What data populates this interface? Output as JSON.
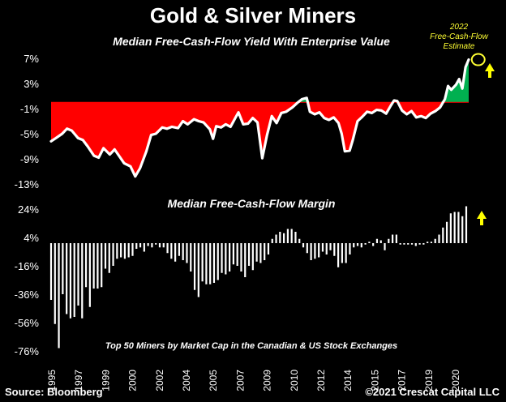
{
  "title": "Gold & Silver Miners",
  "source": "Source: Bloomberg",
  "copyright": "©2021 Crescat Capital LLC",
  "chart_data": [
    {
      "type": "area",
      "title": "Median Free-Cash-Flow Yield With Enterprise Value",
      "unit": "%",
      "yticks": [
        "7%",
        "3%",
        "-1%",
        "-5%",
        "-9%",
        "-13%"
      ],
      "ylim": [
        -13,
        7
      ],
      "baseline": 0,
      "annotation": {
        "lines": [
          "2022",
          "Free-Cash-Flow",
          "Estimate"
        ],
        "x": 2021.9,
        "y": 6.8
      },
      "points": [
        [
          1995.0,
          -6.2
        ],
        [
          1995.3,
          -5.7
        ],
        [
          1995.7,
          -5.0
        ],
        [
          1996.0,
          -4.2
        ],
        [
          1996.3,
          -4.5
        ],
        [
          1996.7,
          -5.7
        ],
        [
          1997.0,
          -6.0
        ],
        [
          1997.3,
          -7.0
        ],
        [
          1997.7,
          -8.5
        ],
        [
          1998.0,
          -8.8
        ],
        [
          1998.3,
          -7.3
        ],
        [
          1998.7,
          -8.3
        ],
        [
          1999.0,
          -7.5
        ],
        [
          1999.3,
          -8.6
        ],
        [
          1999.6,
          -9.7
        ],
        [
          2000.0,
          -10.2
        ],
        [
          2000.3,
          -11.8
        ],
        [
          2000.6,
          -10.5
        ],
        [
          2001.0,
          -7.8
        ],
        [
          2001.3,
          -5.2
        ],
        [
          2001.6,
          -5.0
        ],
        [
          2002.0,
          -4.0
        ],
        [
          2002.3,
          -4.2
        ],
        [
          2002.6,
          -3.9
        ],
        [
          2003.0,
          -4.1
        ],
        [
          2003.3,
          -3.0
        ],
        [
          2003.6,
          -3.5
        ],
        [
          2004.0,
          -2.7
        ],
        [
          2004.3,
          -3.0
        ],
        [
          2004.6,
          -3.2
        ],
        [
          2005.0,
          -4.3
        ],
        [
          2005.2,
          -5.8
        ],
        [
          2005.4,
          -3.8
        ],
        [
          2005.7,
          -4.0
        ],
        [
          2006.0,
          -3.5
        ],
        [
          2006.3,
          -3.9
        ],
        [
          2006.6,
          -2.5
        ],
        [
          2006.8,
          -1.6
        ],
        [
          2007.1,
          -3.5
        ],
        [
          2007.4,
          -3.4
        ],
        [
          2007.7,
          -2.5
        ],
        [
          2008.0,
          -3.2
        ],
        [
          2008.3,
          -8.9
        ],
        [
          2008.6,
          -5.2
        ],
        [
          2008.9,
          -2.2
        ],
        [
          2009.2,
          -3.3
        ],
        [
          2009.5,
          -1.7
        ],
        [
          2009.8,
          -1.5
        ],
        [
          2010.2,
          -0.8
        ],
        [
          2010.5,
          -0.1
        ],
        [
          2010.8,
          0.5
        ],
        [
          2011.1,
          0.7
        ],
        [
          2011.3,
          -1.5
        ],
        [
          2011.6,
          -1.9
        ],
        [
          2011.9,
          -1.6
        ],
        [
          2012.2,
          -2.5
        ],
        [
          2012.5,
          -2.8
        ],
        [
          2012.8,
          -2.4
        ],
        [
          2013.1,
          -3.3
        ],
        [
          2013.3,
          -5.0
        ],
        [
          2013.5,
          -7.8
        ],
        [
          2013.8,
          -7.7
        ],
        [
          2014.0,
          -6.0
        ],
        [
          2014.3,
          -3.0
        ],
        [
          2014.6,
          -2.3
        ],
        [
          2014.9,
          -1.5
        ],
        [
          2015.2,
          -1.7
        ],
        [
          2015.5,
          -1.2
        ],
        [
          2015.8,
          -1.3
        ],
        [
          2016.1,
          -1.8
        ],
        [
          2016.4,
          -0.5
        ],
        [
          2016.6,
          0.3
        ],
        [
          2016.8,
          0.2
        ],
        [
          2017.1,
          -1.3
        ],
        [
          2017.4,
          -1.9
        ],
        [
          2017.7,
          -1.4
        ],
        [
          2018.0,
          -2.4
        ],
        [
          2018.3,
          -2.2
        ],
        [
          2018.6,
          -2.5
        ],
        [
          2018.9,
          -1.8
        ],
        [
          2019.2,
          -1.4
        ],
        [
          2019.5,
          -0.8
        ],
        [
          2019.8,
          0.5
        ],
        [
          2020.0,
          2.6
        ],
        [
          2020.2,
          2.0
        ],
        [
          2020.5,
          2.8
        ],
        [
          2020.7,
          3.7
        ],
        [
          2020.9,
          2.2
        ],
        [
          2021.1,
          5.6
        ],
        [
          2021.3,
          6.8
        ]
      ]
    },
    {
      "type": "bar",
      "title": "Median Free-Cash-Flow Margin",
      "unit": "%",
      "yticks": [
        "24%",
        "4%",
        "-16%",
        "-36%",
        "-56%",
        "-76%"
      ],
      "ylim": [
        -76,
        24
      ],
      "baseline": 0,
      "note": "Top 50 Miners by Market Cap in the Canadian & US Stock Exchanges",
      "xticks": [
        "1995",
        "1997",
        "1999",
        "2000",
        "2002",
        "2004",
        "2005",
        "2007",
        "2009",
        "2010",
        "2012",
        "2014",
        "2015",
        "2017",
        "2019",
        "2020"
      ],
      "values": [
        -40,
        -57,
        -74,
        -36,
        -50,
        -53,
        -52,
        -44,
        -53,
        -31,
        -45,
        -32,
        -32,
        -31,
        -18,
        -21,
        -16,
        -11,
        -10,
        -11,
        -10,
        -9,
        -4,
        -3,
        -6,
        -2,
        -3,
        -1,
        -3,
        -3,
        -7,
        -11,
        -13,
        -9,
        -12,
        -14,
        -20,
        -33,
        -38,
        -27,
        -29,
        -29,
        -28,
        -26,
        -21,
        -22,
        -20,
        -15,
        -16,
        -20,
        -24,
        -16,
        -19,
        -13,
        -14,
        -12,
        -8,
        3,
        6,
        8,
        7,
        10,
        10,
        8,
        3,
        -3,
        -7,
        -12,
        -11,
        -10,
        -6,
        -8,
        -5,
        -9,
        -17,
        -14,
        -14,
        -8,
        -3,
        -2,
        -3,
        -1,
        1,
        -2,
        3,
        2,
        -5,
        3,
        6,
        6,
        -1,
        -1,
        -1,
        -1,
        -2,
        -1,
        -1,
        1,
        1,
        3,
        6,
        11,
        15,
        21,
        22,
        22,
        19,
        26
      ]
    }
  ]
}
